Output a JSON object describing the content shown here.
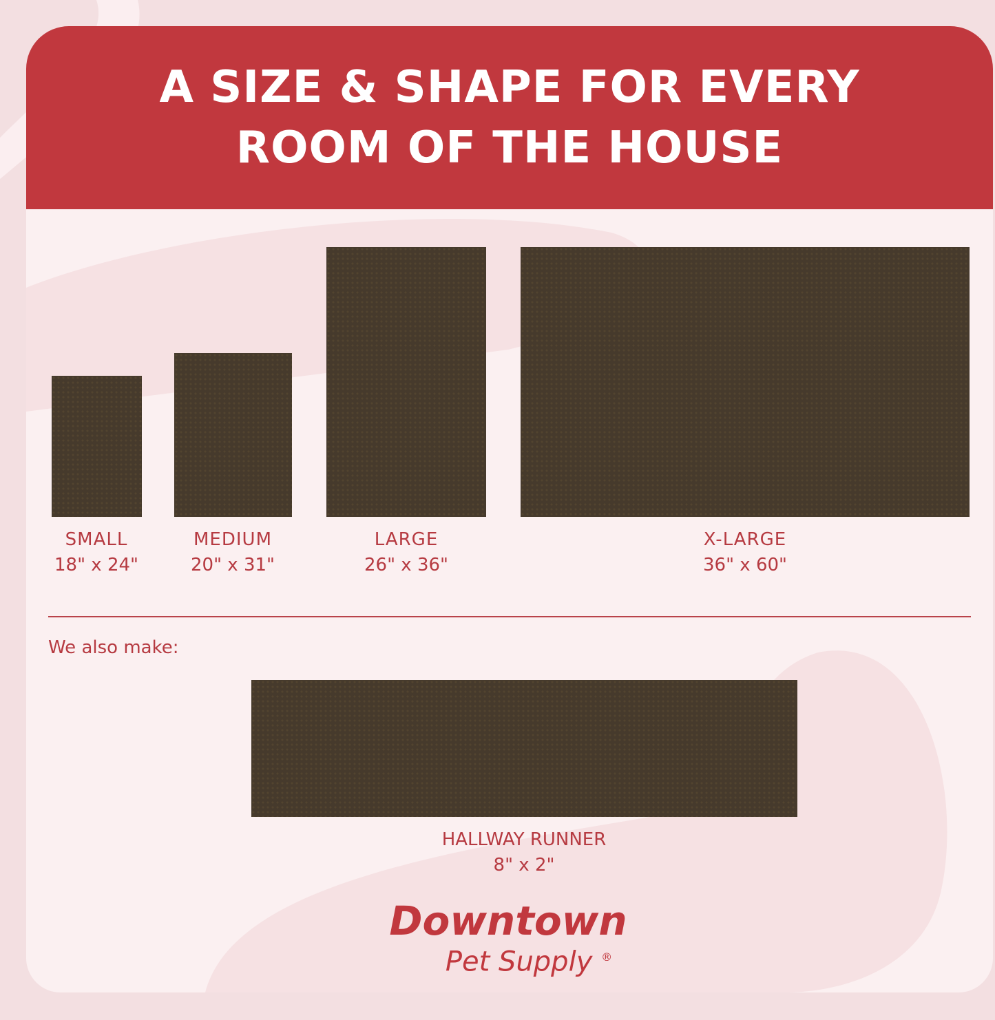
{
  "header": {
    "line1": "A SIZE & SHAPE FOR EVERY",
    "line2": "ROOM OF THE HOUSE"
  },
  "sizes": [
    {
      "name": "SMALL",
      "dims": "18\" x 24\""
    },
    {
      "name": "MEDIUM",
      "dims": "20\" x 31\""
    },
    {
      "name": "LARGE",
      "dims": "26\" x 36\""
    },
    {
      "name": "X-LARGE",
      "dims": "36\" x 60\""
    }
  ],
  "also": {
    "label": "We also make:",
    "name": "HALLWAY RUNNER",
    "dims": "8\" x 2\""
  },
  "logo": {
    "line1": "Downtown",
    "line2": "Pet Supply",
    "mark": "®"
  },
  "colors": {
    "brand_red": "#c1383e",
    "mat": "#463a2c",
    "background": "#fbf0f1"
  }
}
